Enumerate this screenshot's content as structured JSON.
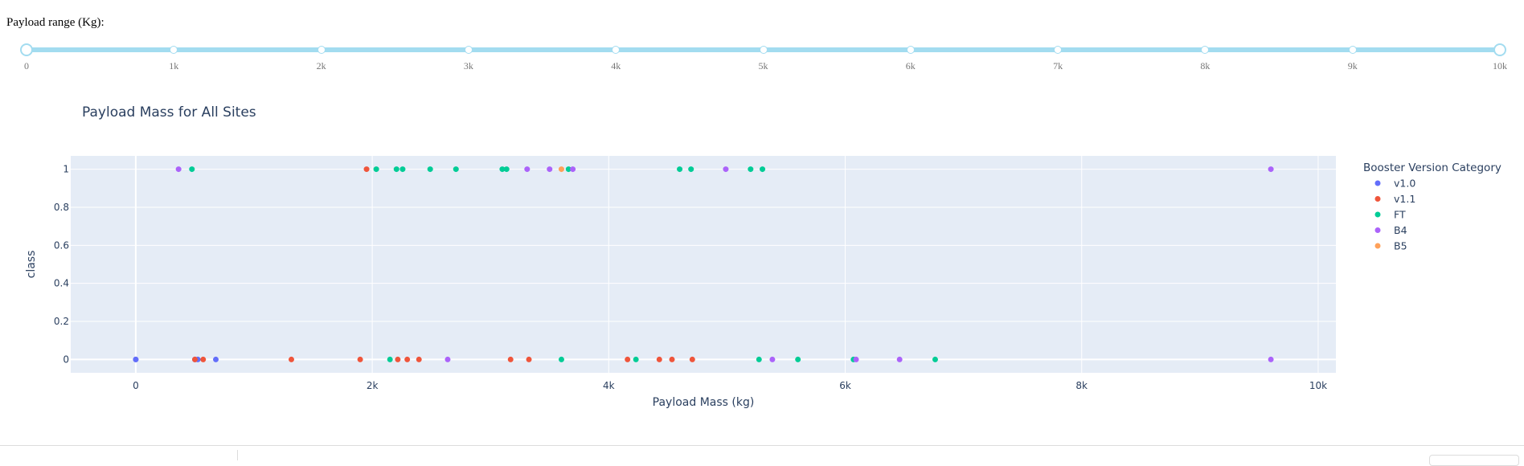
{
  "slider": {
    "label": "Payload range (Kg):",
    "min": 0,
    "max": 10000,
    "value": [
      0,
      10000
    ],
    "marks": [
      "0",
      "1k",
      "2k",
      "3k",
      "4k",
      "5k",
      "6k",
      "7k",
      "8k",
      "9k",
      "10k"
    ],
    "color": "#a3dcf0"
  },
  "chart_data": {
    "type": "scatter",
    "title": "Payload Mass for All Sites",
    "xlabel": "Payload Mass (kg)",
    "ylabel": "class",
    "xlim": [
      -550,
      10150
    ],
    "ylim": [
      -0.07,
      1.07
    ],
    "x_ticks": [
      0,
      2000,
      4000,
      6000,
      8000,
      10000
    ],
    "x_tick_labels": [
      "0",
      "2k",
      "4k",
      "6k",
      "8k",
      "10k"
    ],
    "y_ticks": [
      0,
      0.2,
      0.4,
      0.6,
      0.8,
      1
    ],
    "y_tick_labels": [
      "0",
      "0.2",
      "0.4",
      "0.6",
      "0.8",
      "1"
    ],
    "grid": true,
    "legend_title": "Booster Version Category",
    "legend_position": "right",
    "series": [
      {
        "name": "v1.0",
        "color": "#636efa",
        "x": [
          0,
          0,
          525,
          677,
          500
        ],
        "y": [
          0,
          0,
          0,
          0,
          0
        ]
      },
      {
        "name": "v1.1",
        "color": "#ef553b",
        "x": [
          500,
          570,
          1316,
          1898,
          1952,
          2216,
          2296,
          2395,
          3170,
          3325,
          4159,
          4428,
          4535,
          4707
        ],
        "y": [
          0,
          0,
          0,
          0,
          1,
          0,
          0,
          0,
          0,
          0,
          0,
          0,
          0,
          0
        ]
      },
      {
        "name": "FT",
        "color": "#00cc96",
        "x": [
          475,
          2034,
          2150,
          2205,
          2257,
          2490,
          2708,
          3100,
          3136,
          3600,
          3660,
          4230,
          4600,
          4696,
          5200,
          5300,
          5271,
          5600,
          6070,
          6761
        ],
        "y": [
          1,
          1,
          0,
          1,
          1,
          1,
          1,
          1,
          1,
          0,
          1,
          0,
          1,
          1,
          1,
          1,
          0,
          0,
          0,
          0
        ]
      },
      {
        "name": "B4",
        "color": "#ab63fa",
        "x": [
          362,
          2638,
          3310,
          3500,
          3696,
          4990,
          5384,
          6092,
          6460,
          9600,
          9600
        ],
        "y": [
          1,
          0,
          1,
          1,
          1,
          1,
          0,
          0,
          0,
          1,
          0
        ]
      },
      {
        "name": "B5",
        "color": "#ffa15a",
        "x": [
          3600
        ],
        "y": [
          1
        ]
      }
    ]
  }
}
